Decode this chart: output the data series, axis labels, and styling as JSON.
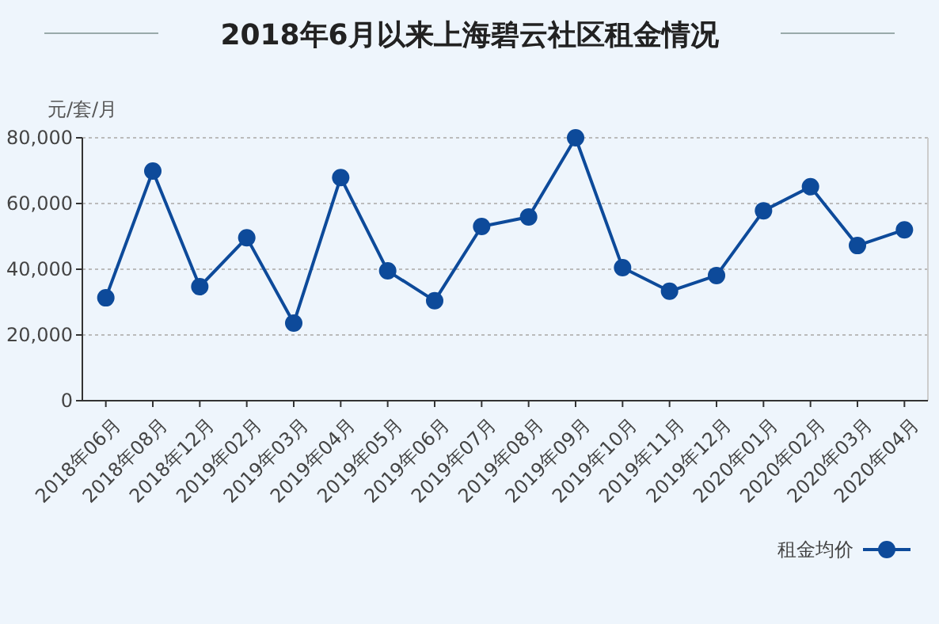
{
  "chart_data": {
    "type": "line",
    "title": "2018年6月以来上海碧云社区租金情况",
    "ylabel": "元/套/月",
    "categories": [
      "2018年06月",
      "2018年08月",
      "2018年12月",
      "2019年02月",
      "2019年03月",
      "2019年04月",
      "2019年05月",
      "2019年06月",
      "2019年07月",
      "2019年08月",
      "2019年09月",
      "2019年10月",
      "2019年11月",
      "2019年12月",
      "2020年01月",
      "2020年02月",
      "2020年03月",
      "2020年04月"
    ],
    "series": [
      {
        "name": "租金均价",
        "color": "#0d4a9a",
        "values": [
          31300,
          69900,
          34700,
          49600,
          23600,
          67900,
          39500,
          30400,
          53000,
          55900,
          80000,
          40500,
          33300,
          38100,
          57800,
          65100,
          47200,
          52000
        ]
      }
    ],
    "ylim": [
      0,
      80000
    ],
    "yticks": [
      0,
      {
        "value": 20000,
        "label": "20,000"
      },
      {
        "value": 40000,
        "label": "40,000"
      },
      {
        "value": 60000,
        "label": "60,000"
      },
      {
        "value": 80000,
        "label": "80,000"
      }
    ],
    "grid": "y",
    "legend": "bottom right",
    "marker": "circle",
    "line_style": "solid"
  }
}
